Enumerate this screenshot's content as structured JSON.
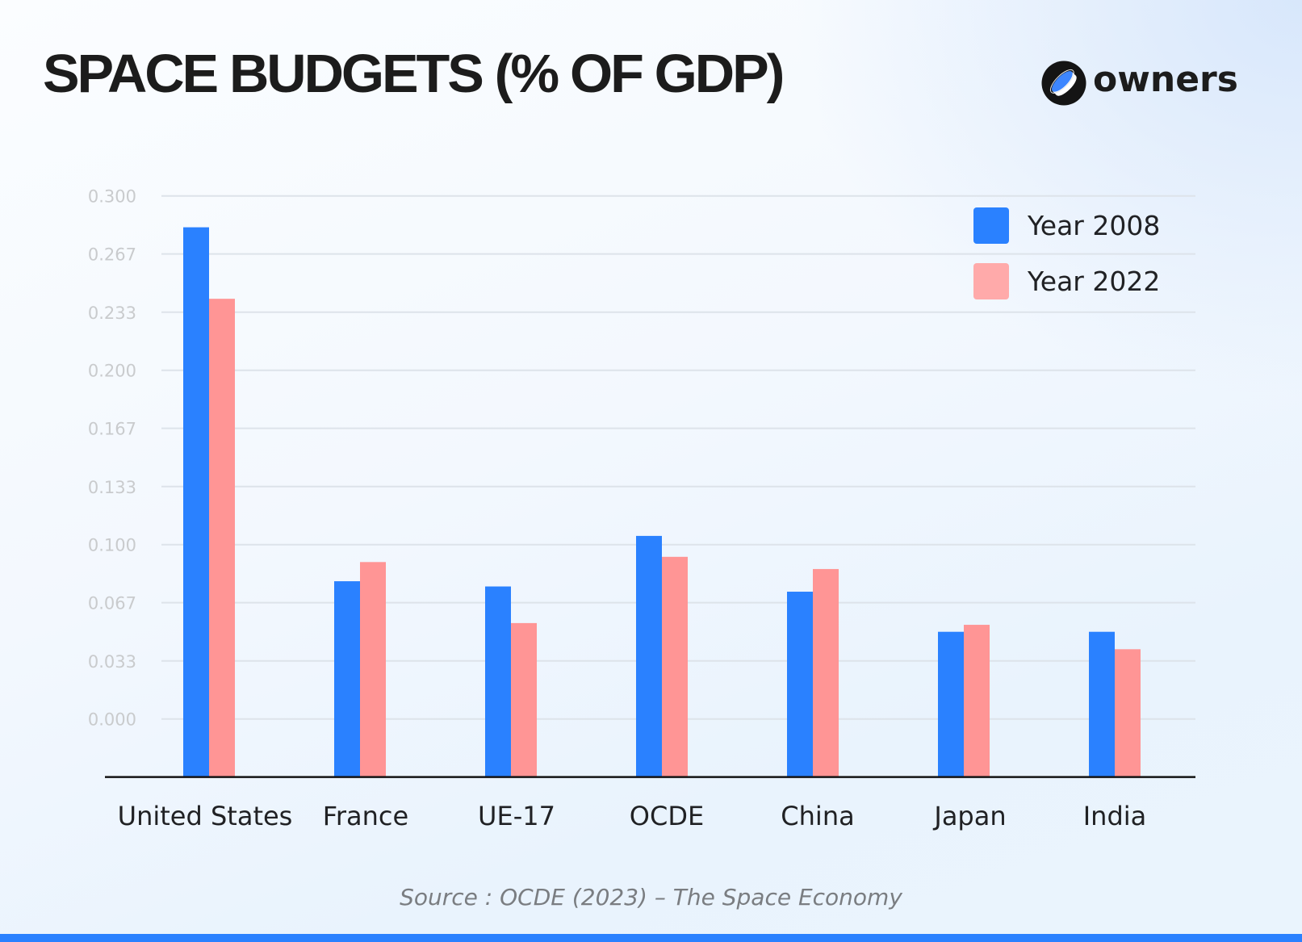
{
  "header": {
    "title": "SPACE BUDGETS (% OF GDP)",
    "brand": "owners",
    "brand_icon": "owners-logo-icon"
  },
  "footer": {
    "source": "Source : OCDE (2023) – The Space Economy",
    "stripe_color": "#2a81ff"
  },
  "chart_data": {
    "type": "bar",
    "title": "SPACE BUDGETS (% OF GDP)",
    "xlabel": "",
    "ylabel": "",
    "categories": [
      "United States",
      "France",
      "UE-17",
      "OCDE",
      "China",
      "Japan",
      "India"
    ],
    "series": [
      {
        "name": "Year 2008",
        "color": "#2a81ff",
        "legend_color": "#2a81ff",
        "values": [
          0.282,
          0.079,
          0.076,
          0.105,
          0.073,
          0.05,
          0.05
        ]
      },
      {
        "name": "Year 2022",
        "color": "#ff9595",
        "legend_color": "#ffaaaa",
        "values": [
          0.241,
          0.09,
          0.055,
          0.093,
          0.086,
          0.054,
          0.04
        ]
      }
    ],
    "yticks": [
      "0.000",
      "0.033",
      "0.067",
      "0.100",
      "0.133",
      "0.167",
      "0.200",
      "0.233",
      "0.267",
      "0.300"
    ],
    "ytick_values": [
      0,
      0.0333,
      0.0667,
      0.1,
      0.1333,
      0.1667,
      0.2,
      0.2333,
      0.2667,
      0.3
    ],
    "ylim": [
      -0.0333,
      0.3
    ],
    "grid": true,
    "legend_position": "top-right",
    "source": "Source : OCDE (2023) – The Space Economy"
  }
}
